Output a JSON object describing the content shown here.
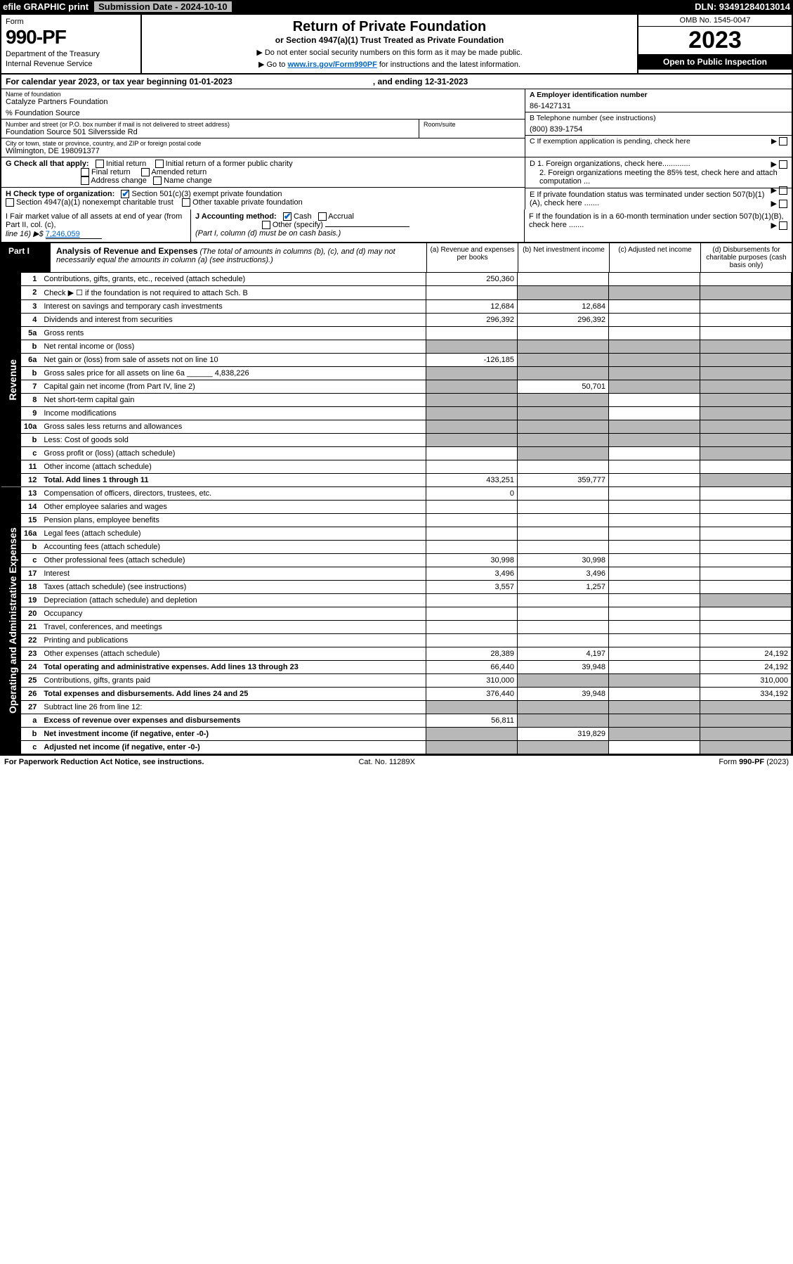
{
  "topbar": {
    "efile": "efile GRAPHIC print",
    "sub_lbl": "Submission Date - 2024-10-10",
    "dln": "DLN: 93491284013014"
  },
  "header": {
    "form_word": "Form",
    "form_num": "990-PF",
    "dept1": "Department of the Treasury",
    "dept2": "Internal Revenue Service",
    "title": "Return of Private Foundation",
    "subtitle": "or Section 4947(a)(1) Trust Treated as Private Foundation",
    "note1": "▶ Do not enter social security numbers on this form as it may be made public.",
    "note2_a": "▶ Go to ",
    "note2_link": "www.irs.gov/Form990PF",
    "note2_b": " for instructions and the latest information.",
    "omb": "OMB No. 1545-0047",
    "year": "2023",
    "open": "Open to Public Inspection"
  },
  "calyear": {
    "a": "For calendar year 2023, or tax year beginning 01-01-2023",
    "b": ", and ending 12-31-2023"
  },
  "id": {
    "name_lbl": "Name of foundation",
    "name": "Catalyze Partners Foundation",
    "pct": "% Foundation Source",
    "addr_lbl": "Number and street (or P.O. box number if mail is not delivered to street address)",
    "addr": "Foundation Source 501 Silversside Rd",
    "room_lbl": "Room/suite",
    "city_lbl": "City or town, state or province, country, and ZIP or foreign postal code",
    "city": "Wilmington, DE  198091377",
    "a_lbl": "A Employer identification number",
    "a_val": "86-1427131",
    "b_lbl": "B Telephone number (see instructions)",
    "b_val": "(800) 839-1754",
    "c_lbl": "C If exemption application is pending, check here"
  },
  "g": {
    "lbl": "G Check all that apply:",
    "o1": "Initial return",
    "o2": "Initial return of a former public charity",
    "o3": "Final return",
    "o4": "Amended return",
    "o5": "Address change",
    "o6": "Name change"
  },
  "h": {
    "lbl": "H Check type of organization:",
    "o1": "Section 501(c)(3) exempt private foundation",
    "o2": "Section 4947(a)(1) nonexempt charitable trust",
    "o3": "Other taxable private foundation"
  },
  "d": {
    "d1": "D 1. Foreign organizations, check here.............",
    "d2": "2. Foreign organizations meeting the 85% test, check here and attach computation ...",
    "e": "E  If private foundation status was terminated under section 507(b)(1)(A), check here ......."
  },
  "ijf": {
    "i1": "I Fair market value of all assets at end of year (from Part II, col. (c),",
    "i2": "line 16) ▶$ ",
    "i_val": "7,246,059",
    "j1": "J Accounting method:",
    "j_cash": "Cash",
    "j_acc": "Accrual",
    "j_oth": "Other (specify)",
    "j_note": "(Part I, column (d) must be on cash basis.)",
    "f": "F  If the foundation is in a 60-month termination under section 507(b)(1)(B), check here ......."
  },
  "part1": {
    "lbl": "Part I",
    "title": "Analysis of Revenue and Expenses",
    "title2": " (The total of amounts in columns (b), (c), and (d) may not necessarily equal the amounts in column (a) (see instructions).)",
    "ca": "(a)  Revenue and expenses per books",
    "cb": "(b)  Net investment income",
    "cc": "(c)  Adjusted net income",
    "cd": "(d)  Disbursements for charitable purposes (cash basis only)"
  },
  "side_rev": "Revenue",
  "side_exp": "Operating and Administrative Expenses",
  "rows": [
    {
      "n": "1",
      "d": "Contributions, gifts, grants, etc., received (attach schedule)",
      "a": "250,360",
      "b": "",
      "c": "",
      "cd": ""
    },
    {
      "n": "2",
      "d": "Check ▶ ☐ if the foundation is not required to attach Sch. B",
      "a": "",
      "shade_b": true,
      "shade_c": true,
      "shade_cd": true
    },
    {
      "n": "3",
      "d": "Interest on savings and temporary cash investments",
      "a": "12,684",
      "b": "12,684"
    },
    {
      "n": "4",
      "d": "Dividends and interest from securities",
      "a": "296,392",
      "b": "296,392"
    },
    {
      "n": "5a",
      "d": "Gross rents"
    },
    {
      "n": "b",
      "d": "Net rental income or (loss)",
      "shade_a": true,
      "shade_b": true,
      "shade_c": true,
      "shade_cd": true,
      "inline": true
    },
    {
      "n": "6a",
      "d": "Net gain or (loss) from sale of assets not on line 10",
      "a": "-126,185",
      "shade_b": true,
      "shade_c": true,
      "shade_cd": true
    },
    {
      "n": "b",
      "d": "Gross sales price for all assets on line 6a ______ 4,838,226",
      "shade_a": true,
      "shade_b": true,
      "shade_c": true,
      "shade_cd": true,
      "inline": true
    },
    {
      "n": "7",
      "d": "Capital gain net income (from Part IV, line 2)",
      "shade_a": true,
      "b": "50,701",
      "shade_c": true,
      "shade_cd": true
    },
    {
      "n": "8",
      "d": "Net short-term capital gain",
      "shade_a": true,
      "shade_b": true,
      "shade_cd": true
    },
    {
      "n": "9",
      "d": "Income modifications",
      "shade_a": true,
      "shade_b": true,
      "shade_cd": true
    },
    {
      "n": "10a",
      "d": "Gross sales less returns and allowances",
      "shade_a": true,
      "shade_b": true,
      "shade_c": true,
      "shade_cd": true,
      "inline": true
    },
    {
      "n": "b",
      "d": "Less: Cost of goods sold",
      "shade_a": true,
      "shade_b": true,
      "shade_c": true,
      "shade_cd": true,
      "inline": true
    },
    {
      "n": "c",
      "d": "Gross profit or (loss) (attach schedule)",
      "shade_b": true,
      "shade_cd": true
    },
    {
      "n": "11",
      "d": "Other income (attach schedule)"
    },
    {
      "n": "12",
      "d": "Total. Add lines 1 through 11",
      "bold": true,
      "a": "433,251",
      "b": "359,777",
      "shade_cd": true
    }
  ],
  "exp_rows": [
    {
      "n": "13",
      "d": "Compensation of officers, directors, trustees, etc.",
      "a": "0"
    },
    {
      "n": "14",
      "d": "Other employee salaries and wages"
    },
    {
      "n": "15",
      "d": "Pension plans, employee benefits"
    },
    {
      "n": "16a",
      "d": "Legal fees (attach schedule)"
    },
    {
      "n": "b",
      "d": "Accounting fees (attach schedule)"
    },
    {
      "n": "c",
      "d": "Other professional fees (attach schedule)",
      "a": "30,998",
      "b": "30,998"
    },
    {
      "n": "17",
      "d": "Interest",
      "a": "3,496",
      "b": "3,496"
    },
    {
      "n": "18",
      "d": "Taxes (attach schedule) (see instructions)",
      "a": "3,557",
      "b": "1,257"
    },
    {
      "n": "19",
      "d": "Depreciation (attach schedule) and depletion",
      "shade_cd": true
    },
    {
      "n": "20",
      "d": "Occupancy"
    },
    {
      "n": "21",
      "d": "Travel, conferences, and meetings"
    },
    {
      "n": "22",
      "d": "Printing and publications"
    },
    {
      "n": "23",
      "d": "Other expenses (attach schedule)",
      "a": "28,389",
      "b": "4,197",
      "cd": "24,192"
    },
    {
      "n": "24",
      "d": "Total operating and administrative expenses. Add lines 13 through 23",
      "bold": true,
      "a": "66,440",
      "b": "39,948",
      "cd": "24,192"
    },
    {
      "n": "25",
      "d": "Contributions, gifts, grants paid",
      "a": "310,000",
      "shade_b": true,
      "shade_c": true,
      "cd": "310,000"
    },
    {
      "n": "26",
      "d": "Total expenses and disbursements. Add lines 24 and 25",
      "bold": true,
      "a": "376,440",
      "b": "39,948",
      "cd": "334,192"
    }
  ],
  "bot_rows": [
    {
      "n": "27",
      "d": "Subtract line 26 from line 12:",
      "shade_a": true,
      "shade_b": true,
      "shade_c": true,
      "shade_cd": true
    },
    {
      "n": "a",
      "d": "Excess of revenue over expenses and disbursements",
      "bold": true,
      "a": "56,811",
      "shade_b": true,
      "shade_c": true,
      "shade_cd": true
    },
    {
      "n": "b",
      "d": "Net investment income (if negative, enter -0-)",
      "bold": true,
      "shade_a": true,
      "b": "319,829",
      "shade_c": true,
      "shade_cd": true
    },
    {
      "n": "c",
      "d": "Adjusted net income (if negative, enter -0-)",
      "bold": true,
      "shade_a": true,
      "shade_b": true,
      "shade_cd": true
    }
  ],
  "footer": {
    "l": "For Paperwork Reduction Act Notice, see instructions.",
    "m": "Cat. No. 11289X",
    "r": "Form 990-PF (2023)"
  }
}
